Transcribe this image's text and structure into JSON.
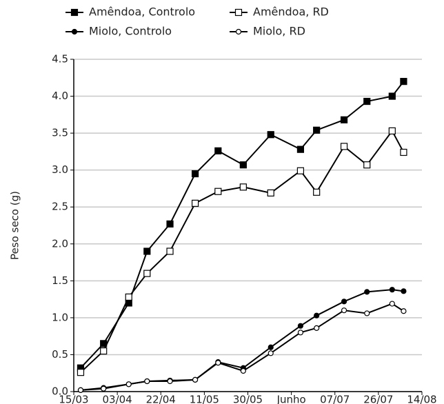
{
  "chart_data": {
    "type": "line",
    "y_label": "Peso seco (g)",
    "x": [
      77,
      87,
      98,
      106,
      116,
      127,
      137,
      148,
      160,
      173,
      180,
      192,
      202,
      213,
      218
    ],
    "xlim": [
      74,
      226
    ],
    "xticks": [
      {
        "value": 74,
        "label": "15/03"
      },
      {
        "value": 93,
        "label": "03/04"
      },
      {
        "value": 112,
        "label": "22/04"
      },
      {
        "value": 131,
        "label": "11/05"
      },
      {
        "value": 150,
        "label": "30/05"
      },
      {
        "value": 169,
        "label": "Junho"
      },
      {
        "value": 188,
        "label": "07/07"
      },
      {
        "value": 207,
        "label": "26/07"
      },
      {
        "value": 226,
        "label": "14/08"
      }
    ],
    "ylim": [
      0,
      4.5
    ],
    "yticks": [
      {
        "value": 0,
        "label": "0.0"
      },
      0.5,
      {
        "value": 1,
        "label": "1.0"
      },
      1.5,
      {
        "value": 2,
        "label": "2.0"
      },
      2.5,
      {
        "value": 3,
        "label": "3.0"
      },
      3.5,
      {
        "value": 4,
        "label": "4.0"
      },
      4.5
    ],
    "grid": true,
    "series": [
      {
        "name": "Amêndoa, Controlo",
        "color": "#000000",
        "marker": "square",
        "marker_fill": "#000000",
        "values": [
          0.32,
          0.65,
          1.2,
          1.9,
          2.27,
          2.95,
          3.26,
          3.07,
          3.48,
          3.28,
          3.54,
          3.68,
          3.93,
          4.0,
          4.2
        ]
      },
      {
        "name": "Amêndoa, RD",
        "color": "#000000",
        "marker": "square",
        "marker_fill": "#ffffff",
        "values": [
          0.26,
          0.55,
          1.28,
          1.6,
          1.9,
          2.55,
          2.71,
          2.77,
          2.69,
          2.99,
          2.7,
          3.32,
          3.07,
          3.53,
          3.24
        ]
      },
      {
        "name": "Miolo, Controlo",
        "color": "#000000",
        "marker": "circle",
        "marker_fill": "#000000",
        "values": [
          0.02,
          0.05,
          0.1,
          0.14,
          0.15,
          0.16,
          0.4,
          0.32,
          0.6,
          0.89,
          1.03,
          1.22,
          1.35,
          1.38,
          1.36
        ]
      },
      {
        "name": "Miolo, RD",
        "color": "#000000",
        "marker": "circle",
        "marker_fill": "#ffffff",
        "values": [
          0.02,
          0.04,
          0.1,
          0.14,
          0.14,
          0.16,
          0.39,
          0.28,
          0.52,
          0.8,
          0.86,
          1.1,
          1.06,
          1.19,
          1.09
        ]
      }
    ]
  }
}
